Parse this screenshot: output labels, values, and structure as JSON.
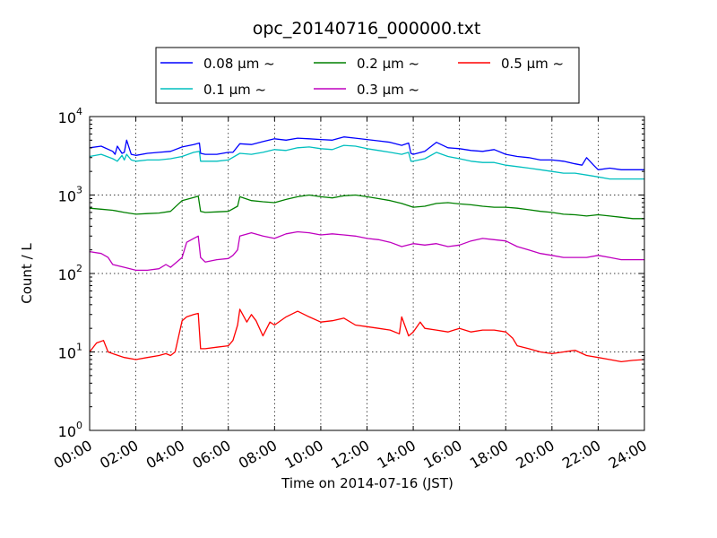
{
  "chart_data": {
    "type": "line",
    "title": "opc_20140716_000000.txt",
    "xlabel": "Time on 2014-07-16 (JST)",
    "ylabel": "Count / L",
    "yscale": "log",
    "ylim": [
      1,
      10000
    ],
    "xlim": [
      0,
      24
    ],
    "x_tick_labels": [
      "00:00",
      "02:00",
      "04:00",
      "06:00",
      "08:00",
      "10:00",
      "12:00",
      "14:00",
      "16:00",
      "18:00",
      "20:00",
      "22:00",
      "24:00"
    ],
    "y_tick_labels": [
      {
        "base": "10",
        "exp": "0"
      },
      {
        "base": "10",
        "exp": "1"
      },
      {
        "base": "10",
        "exp": "2"
      },
      {
        "base": "10",
        "exp": "3"
      },
      {
        "base": "10",
        "exp": "4"
      }
    ],
    "grid": true,
    "legend_position": "top-center",
    "series": [
      {
        "name": "0.08 μm ~",
        "color": "#0000ff",
        "x": [
          0,
          0.5,
          1,
          1.1,
          1.2,
          1.4,
          1.5,
          1.6,
          1.8,
          2,
          2.5,
          3,
          3.5,
          4,
          4.5,
          4.75,
          4.8,
          5,
          5.5,
          6,
          6.2,
          6.5,
          7,
          7.5,
          8,
          8.5,
          9,
          9.5,
          10,
          10.5,
          11,
          11.5,
          12,
          12.5,
          13,
          13.5,
          13.8,
          13.9,
          14,
          14.5,
          15,
          15.5,
          16,
          16.5,
          17,
          17.5,
          18,
          18.5,
          19,
          19.5,
          20,
          20.5,
          21,
          21.3,
          21.5,
          21.8,
          22,
          22.5,
          23,
          23.5,
          24
        ],
        "y": [
          4000,
          4200,
          3600,
          3300,
          4200,
          3400,
          3500,
          5000,
          3300,
          3200,
          3400,
          3500,
          3600,
          4100,
          4400,
          4600,
          3400,
          3300,
          3300,
          3500,
          3500,
          4500,
          4400,
          4800,
          5200,
          5000,
          5300,
          5200,
          5100,
          5000,
          5500,
          5300,
          5100,
          4900,
          4700,
          4300,
          4600,
          3400,
          3300,
          3600,
          4700,
          4000,
          3900,
          3700,
          3600,
          3800,
          3300,
          3100,
          3000,
          2800,
          2800,
          2700,
          2500,
          2400,
          3000,
          2400,
          2100,
          2200,
          2100,
          2100,
          2100
        ]
      },
      {
        "name": "0.1 μm ~",
        "color": "#00bfbf",
        "x": [
          0,
          0.5,
          1,
          1.2,
          1.4,
          1.5,
          1.6,
          1.8,
          2,
          2.5,
          3,
          3.5,
          4,
          4.5,
          4.75,
          4.8,
          5,
          5.5,
          6,
          6.5,
          7,
          7.5,
          8,
          8.5,
          9,
          9.5,
          10,
          10.5,
          11,
          11.5,
          12,
          12.5,
          13,
          13.5,
          13.8,
          13.9,
          14,
          14.5,
          15,
          15.5,
          16,
          16.5,
          17,
          17.5,
          18,
          18.5,
          19,
          19.5,
          20,
          20.5,
          21,
          21.5,
          22,
          22.5,
          23,
          23.5,
          24
        ],
        "y": [
          3100,
          3300,
          2900,
          2700,
          3200,
          2800,
          3300,
          2800,
          2700,
          2800,
          2800,
          2900,
          3100,
          3500,
          3600,
          2700,
          2700,
          2700,
          2800,
          3400,
          3300,
          3500,
          3800,
          3700,
          4000,
          4100,
          3900,
          3800,
          4300,
          4200,
          3900,
          3700,
          3500,
          3300,
          3500,
          2700,
          2700,
          2900,
          3500,
          3100,
          2900,
          2700,
          2600,
          2600,
          2400,
          2300,
          2200,
          2100,
          2000,
          1900,
          1900,
          1800,
          1700,
          1600,
          1600,
          1600,
          1600
        ]
      },
      {
        "name": "0.2 μm ~",
        "color": "#008000",
        "x": [
          0,
          0.5,
          1,
          1.5,
          2,
          2.5,
          3,
          3.5,
          4,
          4.5,
          4.7,
          4.8,
          5,
          5.5,
          6,
          6.4,
          6.5,
          7,
          7.5,
          8,
          8.5,
          9,
          9.5,
          10,
          10.5,
          11,
          11.5,
          12,
          12.5,
          13,
          13.5,
          14,
          14.5,
          15,
          15.5,
          16,
          16.5,
          17,
          17.5,
          18,
          18.5,
          19,
          19.5,
          20,
          20.5,
          21,
          21.5,
          22,
          22.5,
          23,
          23.5,
          24
        ],
        "y": [
          680,
          660,
          640,
          600,
          570,
          580,
          590,
          620,
          850,
          930,
          970,
          620,
          600,
          610,
          620,
          720,
          950,
          850,
          820,
          800,
          880,
          950,
          1000,
          950,
          920,
          980,
          1000,
          950,
          900,
          850,
          780,
          700,
          720,
          780,
          800,
          770,
          750,
          720,
          700,
          700,
          680,
          650,
          620,
          600,
          570,
          560,
          540,
          560,
          540,
          520,
          500,
          500
        ]
      },
      {
        "name": "0.3 μm ~",
        "color": "#bf00bf",
        "x": [
          0,
          0.5,
          0.8,
          1,
          1.5,
          2,
          2.5,
          3,
          3.3,
          3.5,
          4,
          4.2,
          4.5,
          4.7,
          4.8,
          5,
          5.5,
          6,
          6.2,
          6.4,
          6.5,
          7,
          7.5,
          8,
          8.5,
          9,
          9.5,
          10,
          10.5,
          11,
          11.5,
          12,
          12.5,
          13,
          13.5,
          14,
          14.5,
          15,
          15.5,
          16,
          16.5,
          17,
          17.5,
          18,
          18.5,
          19,
          19.5,
          20,
          20.5,
          21,
          21.5,
          22,
          22.5,
          23,
          23.5,
          24
        ],
        "y": [
          190,
          180,
          160,
          130,
          120,
          110,
          110,
          115,
          130,
          120,
          160,
          250,
          280,
          300,
          160,
          140,
          150,
          155,
          170,
          200,
          300,
          330,
          300,
          280,
          320,
          340,
          330,
          310,
          320,
          310,
          300,
          280,
          270,
          250,
          220,
          240,
          230,
          240,
          220,
          230,
          260,
          280,
          270,
          260,
          220,
          200,
          180,
          170,
          160,
          160,
          160,
          170,
          160,
          150,
          150,
          150
        ]
      },
      {
        "name": "0.5 μm ~",
        "color": "#ff0000",
        "x": [
          0,
          0.3,
          0.6,
          0.8,
          1,
          1.5,
          2,
          2.5,
          3,
          3.3,
          3.5,
          3.7,
          4,
          4.2,
          4.5,
          4.7,
          4.8,
          5,
          5.5,
          6,
          6.2,
          6.4,
          6.5,
          6.8,
          7,
          7.2,
          7.5,
          7.8,
          8,
          8.5,
          9,
          9.5,
          10,
          10.5,
          11,
          11.5,
          12,
          12.5,
          13,
          13.4,
          13.5,
          13.8,
          14,
          14.3,
          14.5,
          15,
          15.5,
          16,
          16.5,
          17,
          17.5,
          18,
          18.3,
          18.5,
          19,
          19.5,
          20,
          20.5,
          21,
          21.5,
          22,
          22.5,
          23,
          23.5,
          24
        ],
        "y": [
          10,
          13,
          14,
          10,
          9.5,
          8.5,
          8,
          8.5,
          9,
          9.5,
          9,
          10,
          25,
          28,
          30,
          31,
          11,
          11,
          11.5,
          12,
          14,
          22,
          35,
          24,
          30,
          25,
          16,
          24,
          22,
          28,
          33,
          28,
          24,
          25,
          27,
          22,
          21,
          20,
          19,
          17,
          28,
          16,
          18,
          24,
          20,
          19,
          18,
          20,
          18,
          19,
          19,
          18,
          15,
          12,
          11,
          10,
          9.5,
          10,
          10.5,
          9,
          8.5,
          8,
          7.5,
          7.8,
          8
        ]
      }
    ]
  }
}
